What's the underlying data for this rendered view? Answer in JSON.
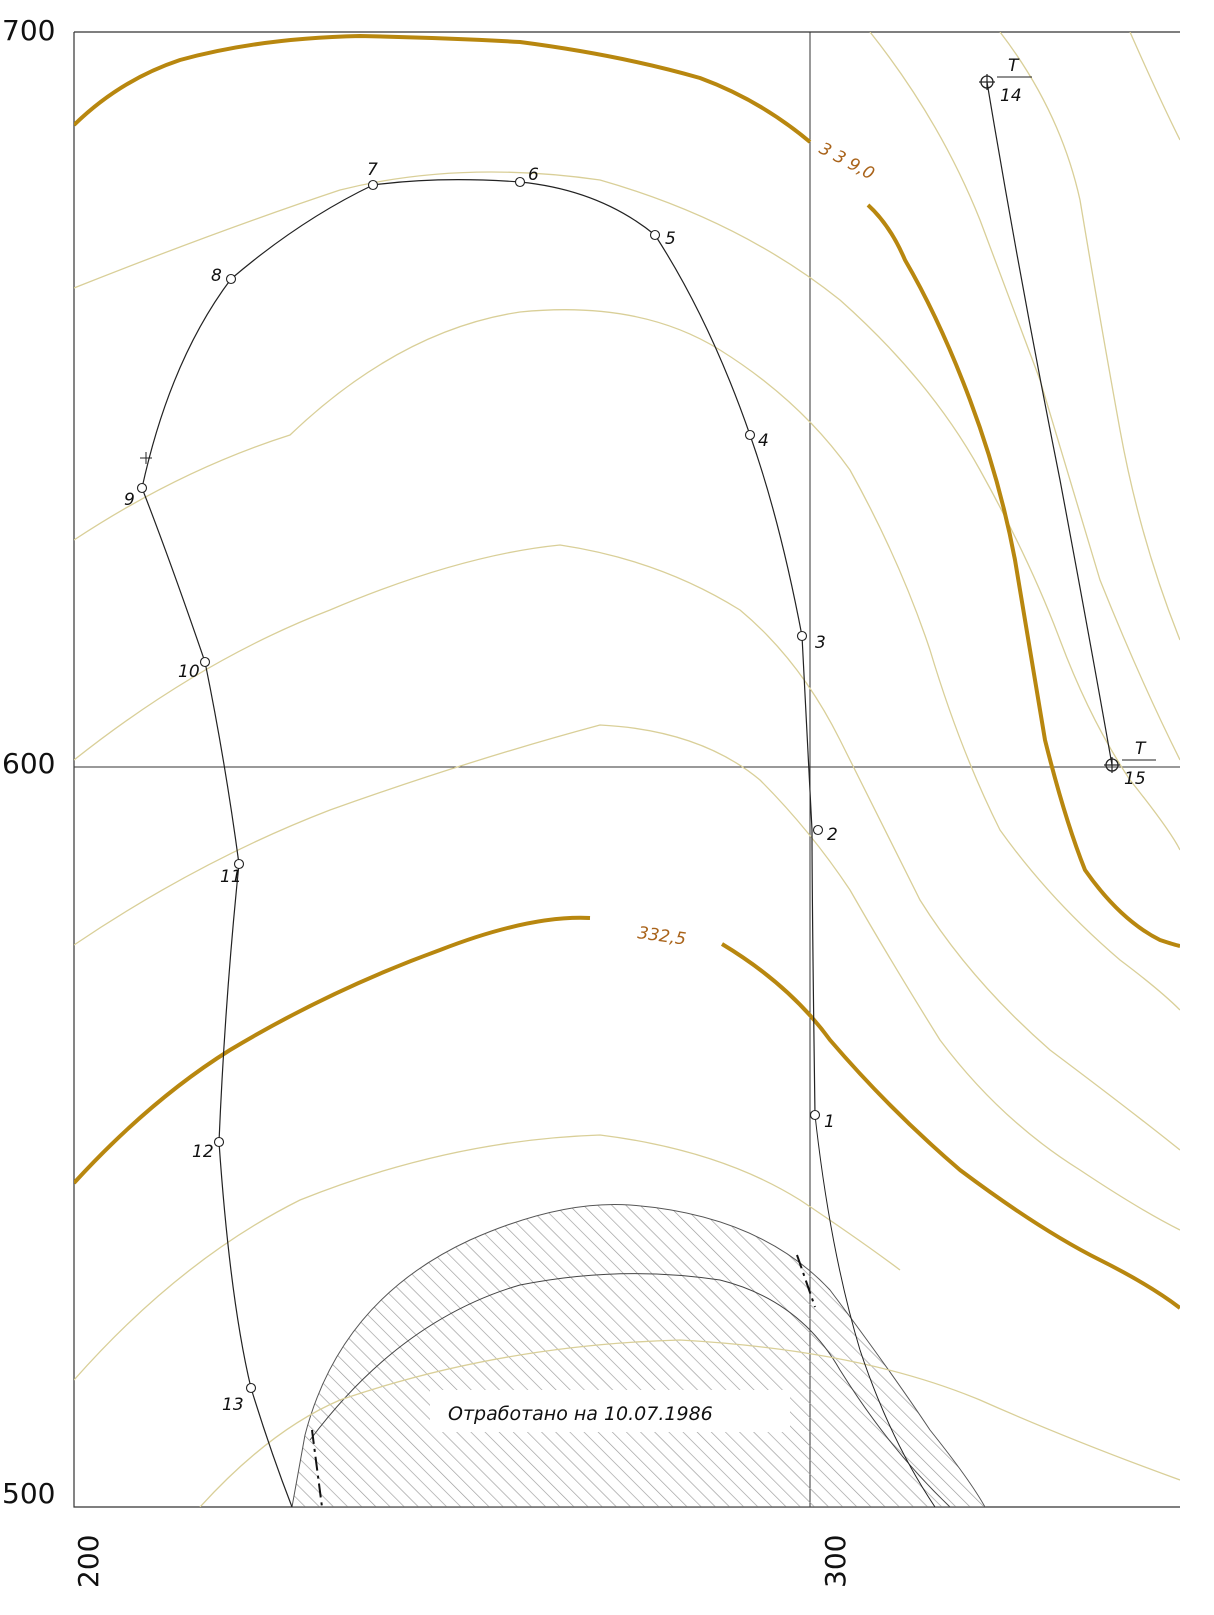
{
  "axes": {
    "y_labels": [
      "700",
      "600",
      "500"
    ],
    "x_labels": [
      "200",
      "300"
    ]
  },
  "colors": {
    "contour_index": "#b8870f",
    "contour_minor": "#d9cf98",
    "contour_label": "#a9631a",
    "survey_line": "#222222",
    "grid": "#333333",
    "hatch": "#9a9a9a"
  },
  "contours": {
    "labels": [
      "3 3 9,0",
      "332,5"
    ]
  },
  "survey_points": [
    "1",
    "2",
    "3",
    "4",
    "5",
    "6",
    "7",
    "8",
    "9",
    "10",
    "11",
    "12",
    "13"
  ],
  "stations": [
    {
      "top": "T",
      "bottom": "14"
    },
    {
      "top": "T",
      "bottom": "15"
    }
  ],
  "mined_area": {
    "label": "Отработано на 10.07.1986"
  }
}
